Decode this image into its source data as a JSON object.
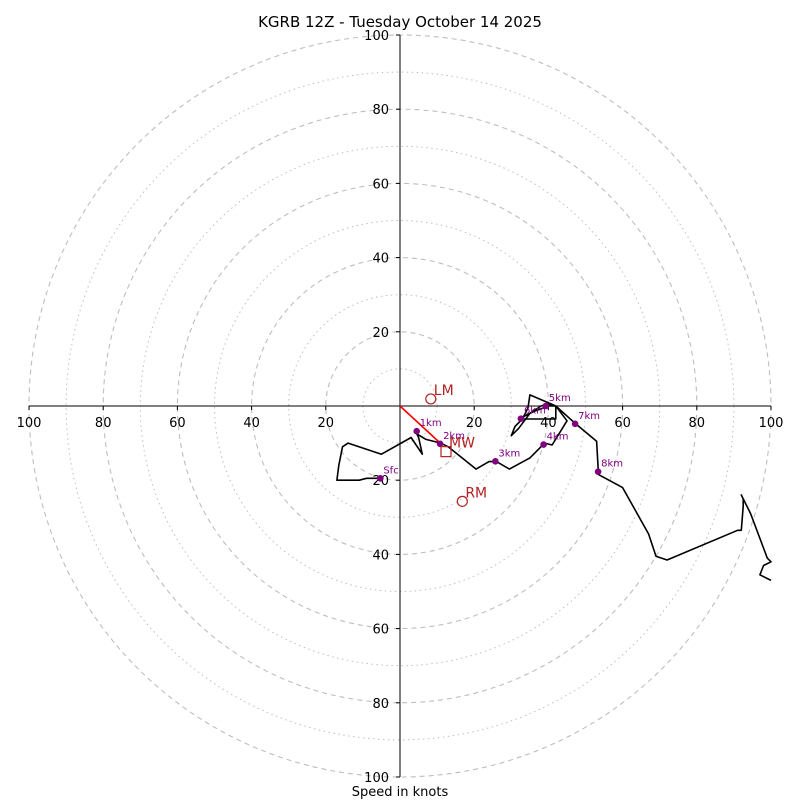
{
  "chart_data": {
    "type": "hodograph",
    "title": "KGRB 12Z - Tuesday October 14 2025",
    "xlabel": "Speed in knots",
    "range": [
      -100,
      100
    ],
    "rings_major": [
      20,
      40,
      60,
      80,
      100
    ],
    "rings_minor": [
      10,
      30,
      50,
      70,
      90
    ],
    "x_ticks": [
      {
        "label": "100"
      },
      {
        "label": "80"
      },
      {
        "label": "60"
      },
      {
        "label": "40"
      },
      {
        "label": "20"
      },
      {
        "label": "20"
      },
      {
        "label": "40"
      },
      {
        "label": "60"
      },
      {
        "label": "80"
      },
      {
        "label": "100"
      }
    ],
    "x_tick_values": [
      -100,
      -80,
      -60,
      -40,
      -20,
      20,
      40,
      60,
      80,
      100
    ],
    "y_ticks": [
      {
        "label": "100"
      },
      {
        "label": "80"
      },
      {
        "label": "60"
      },
      {
        "label": "40"
      },
      {
        "label": "20"
      },
      {
        "label": "20"
      },
      {
        "label": "40"
      },
      {
        "label": "60"
      },
      {
        "label": "80"
      },
      {
        "label": "100"
      }
    ],
    "y_tick_values": [
      100,
      80,
      60,
      40,
      20,
      -20,
      -40,
      -60,
      -80,
      -100
    ],
    "hodograph_uv": [
      [
        -5.5,
        -19.5
      ],
      [
        -9,
        -19.5
      ],
      [
        -11,
        -20
      ],
      [
        -17,
        -20
      ],
      [
        -16.5,
        -16
      ],
      [
        -15.5,
        -11
      ],
      [
        -14,
        -10
      ],
      [
        -5,
        -13
      ],
      [
        3,
        -8.5
      ],
      [
        6,
        -13
      ],
      [
        5,
        -8.5
      ],
      [
        4.5,
        -7.5
      ],
      [
        7,
        -9
      ],
      [
        11,
        -10
      ],
      [
        13,
        -11
      ],
      [
        20.5,
        -17
      ],
      [
        24,
        -15
      ],
      [
        26,
        -15
      ],
      [
        29.5,
        -17
      ],
      [
        35,
        -14
      ],
      [
        39,
        -10
      ],
      [
        41,
        -10.5
      ],
      [
        45,
        -4
      ],
      [
        42,
        0
      ],
      [
        39.5,
        0.5
      ],
      [
        38,
        0
      ],
      [
        35,
        -2
      ],
      [
        32,
        -6
      ],
      [
        30,
        -8
      ],
      [
        31,
        -5.5
      ],
      [
        33,
        -3.5
      ],
      [
        34.5,
        -0.5
      ],
      [
        35,
        3
      ],
      [
        42,
        0
      ],
      [
        42,
        -3.5
      ],
      [
        33,
        -3.5
      ],
      [
        33,
        -3
      ],
      [
        36,
        -1.5
      ],
      [
        40,
        0
      ],
      [
        42,
        0
      ],
      [
        47,
        -4.5
      ],
      [
        53,
        -9.5
      ],
      [
        53.5,
        -18.5
      ],
      [
        60,
        -22
      ],
      [
        67,
        -34.5
      ],
      [
        69,
        -40.5
      ],
      [
        72,
        -41.5
      ],
      [
        91,
        -33.5
      ],
      [
        92,
        -33.5
      ],
      [
        92.5,
        -27
      ],
      [
        92.5,
        -25
      ],
      [
        92,
        -24
      ],
      [
        94.5,
        -29
      ],
      [
        99,
        -41
      ],
      [
        100,
        -42
      ],
      [
        98,
        -43
      ],
      [
        97,
        -45.5
      ],
      [
        100,
        -47
      ]
    ],
    "height_markers": [
      {
        "label": "Sfc",
        "u": -5.3,
        "v": -19.5
      },
      {
        "label": "1km",
        "u": 4.5,
        "v": -6.8
      },
      {
        "label": "2km",
        "u": 10.8,
        "v": -10.2
      },
      {
        "label": "3km",
        "u": 25.7,
        "v": -14.9
      },
      {
        "label": "4km",
        "u": 38.7,
        "v": -10.4
      },
      {
        "label": "5km",
        "u": 39.3,
        "v": 0.0
      },
      {
        "label": "6km",
        "u": 32.6,
        "v": -3.4
      },
      {
        "label": "7km",
        "u": 47.2,
        "v": -4.8
      },
      {
        "label": "8km",
        "u": 53.4,
        "v": -17.7
      }
    ],
    "storm_motion": [
      {
        "label": "LM",
        "u": 8.3,
        "v": 1.9,
        "marker": "circle"
      },
      {
        "label": "RM",
        "u": 16.8,
        "v": -25.7,
        "marker": "circle"
      },
      {
        "label": "MW",
        "u": 12.4,
        "v": -12.3,
        "marker": "square"
      }
    ],
    "shear_vector": {
      "from": [
        0,
        0
      ],
      "to": [
        10.3,
        -9.5
      ]
    },
    "colors": {
      "ring": "#bebebe",
      "hodograph": "#000000",
      "height_marker": "#800080",
      "storm_motion": "#b22222",
      "shear": "#ff0000"
    }
  }
}
